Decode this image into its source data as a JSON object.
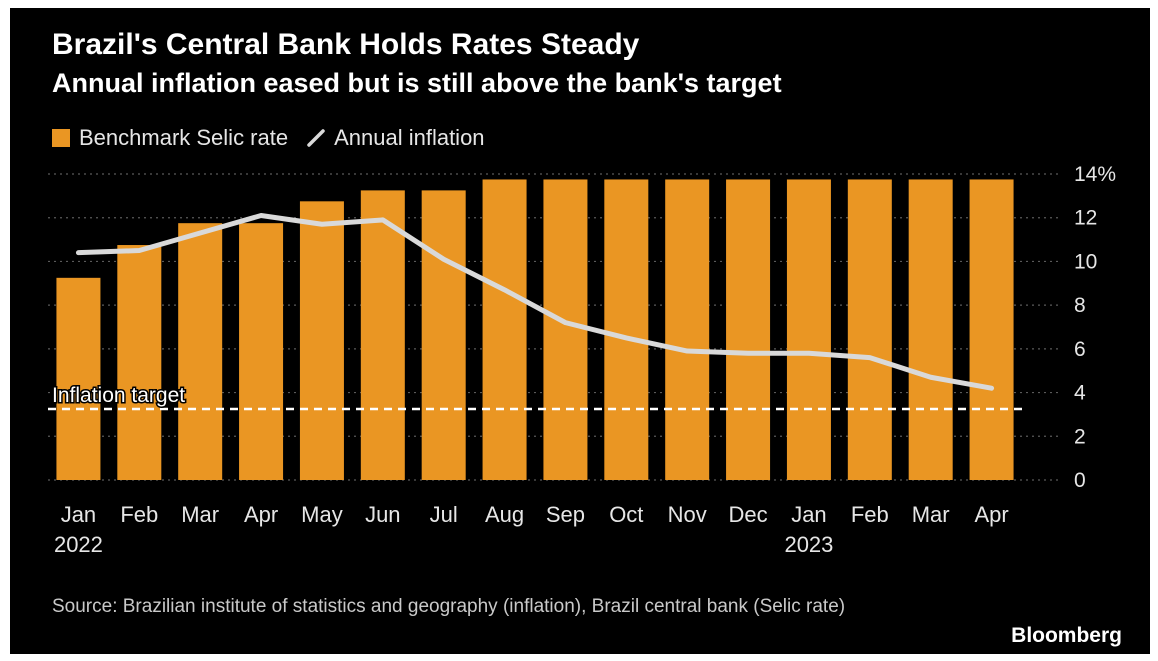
{
  "chart_data": {
    "type": "bar",
    "title": "Brazil's Central Bank Holds Rates Steady",
    "subtitle": "Annual inflation eased but is still above the bank's target",
    "categories": [
      "Jan",
      "Feb",
      "Mar",
      "Apr",
      "May",
      "Jun",
      "Jul",
      "Aug",
      "Sep",
      "Oct",
      "Nov",
      "Dec",
      "Jan",
      "Feb",
      "Mar",
      "Apr"
    ],
    "year_labels": [
      {
        "index": 0,
        "label": "2022"
      },
      {
        "index": 12,
        "label": "2023"
      }
    ],
    "series": [
      {
        "name": "Benchmark Selic rate",
        "type": "bar",
        "color": "#ea9623",
        "values": [
          9.25,
          10.75,
          11.75,
          11.75,
          12.75,
          13.25,
          13.25,
          13.75,
          13.75,
          13.75,
          13.75,
          13.75,
          13.75,
          13.75,
          13.75,
          13.75
        ]
      },
      {
        "name": "Annual inflation",
        "type": "line",
        "color": "#d9d9d9",
        "values": [
          10.4,
          10.5,
          11.3,
          12.1,
          11.7,
          11.9,
          10.1,
          8.7,
          7.2,
          6.5,
          5.9,
          5.8,
          5.8,
          5.6,
          4.7,
          4.2
        ]
      }
    ],
    "reference_line": {
      "label": "Inflation target",
      "value": 3.25,
      "style": "dashed",
      "color": "#ffffff"
    },
    "ylim": [
      0,
      14
    ],
    "yticks": [
      0,
      2,
      4,
      6,
      8,
      10,
      12,
      14
    ],
    "ytick_labels": [
      "0",
      "2",
      "4",
      "6",
      "8",
      "10",
      "12",
      "14%"
    ],
    "y_axis_side": "right",
    "grid": "horizontal dotted",
    "legend_position": "top-left"
  },
  "source": "Source: Brazilian institute of statistics and geography (inflation), Brazil central bank (Selic rate)",
  "brand": "Bloomberg",
  "colors": {
    "background": "#000000",
    "text": "#ffffff",
    "bar": "#ea9623",
    "line": "#d9d9d9",
    "grid": "#5a5a5a"
  }
}
